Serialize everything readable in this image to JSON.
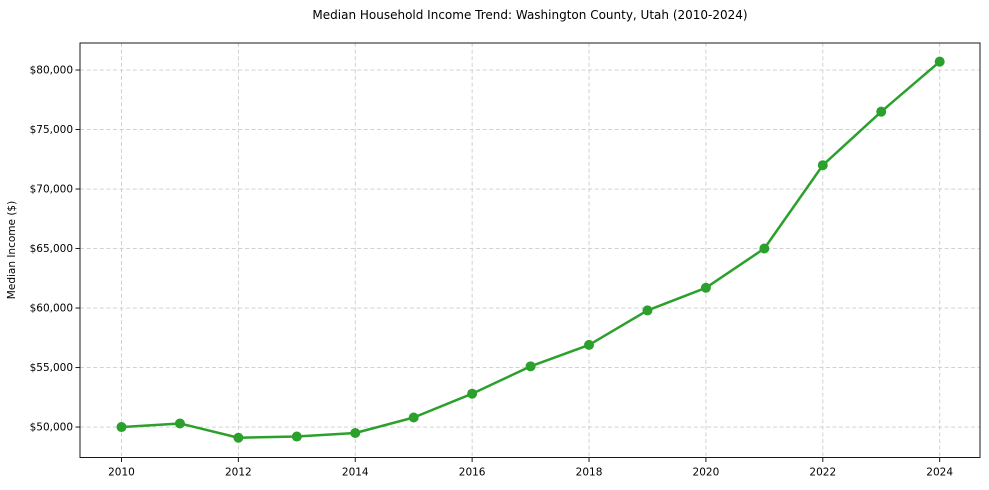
{
  "chart_data": {
    "type": "line",
    "title": "Median Household Income Trend: Washington County, Utah (2010-2024)",
    "xlabel": "",
    "ylabel": "Median Income ($)",
    "x": [
      2010,
      2011,
      2012,
      2013,
      2014,
      2015,
      2016,
      2017,
      2018,
      2019,
      2020,
      2021,
      2022,
      2023,
      2024
    ],
    "values": [
      50000,
      50300,
      49100,
      49200,
      49500,
      50800,
      52800,
      55100,
      56900,
      59800,
      61700,
      65000,
      72000,
      76500,
      80700
    ],
    "x_ticks": [
      2010,
      2012,
      2014,
      2016,
      2018,
      2020,
      2022,
      2024
    ],
    "x_tick_labels": [
      "2010",
      "2012",
      "2014",
      "2016",
      "2018",
      "2020",
      "2022",
      "2024"
    ],
    "y_ticks": [
      50000,
      55000,
      60000,
      65000,
      70000,
      75000,
      80000
    ],
    "y_tick_labels": [
      "$50,000",
      "$55,000",
      "$60,000",
      "$65,000",
      "$70,000",
      "$75,000",
      "$80,000"
    ],
    "xlim": [
      2009.29,
      2024.69
    ],
    "ylim": [
      47440,
      82270
    ],
    "grid": true,
    "grid_style": "dashed",
    "legend": null,
    "line_color": "#2ca02c",
    "marker": "circle",
    "grid_color": "#cccccc",
    "spine_color": "#1a1a1a",
    "text_color": "#000000",
    "background_color": "#ffffff"
  }
}
